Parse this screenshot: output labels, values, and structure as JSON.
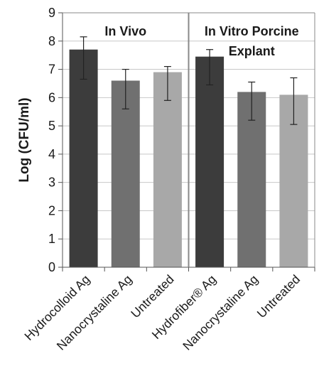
{
  "chart_data": {
    "type": "bar",
    "title": "",
    "xlabel": "",
    "ylabel": "Log (CFU/ml)",
    "ylim": [
      0,
      9
    ],
    "yticks": [
      0,
      1,
      2,
      3,
      4,
      5,
      6,
      7,
      8,
      9
    ],
    "grid": true,
    "groups": [
      {
        "label": "In Vivo",
        "categories": [
          0,
          1,
          2
        ]
      },
      {
        "label_lines": [
          "In Vitro Porcine",
          "Explant"
        ],
        "categories": [
          3,
          4,
          5
        ]
      }
    ],
    "categories": [
      "Hydrocolloid Ag",
      "Nanocrystaline Ag",
      "Untreated",
      "Hydrofiber® Ag",
      "Nanocrystaline Ag",
      "Untreated"
    ],
    "values": [
      7.7,
      6.6,
      6.9,
      7.45,
      6.2,
      6.1
    ],
    "error_low": [
      6.65,
      5.6,
      5.9,
      6.45,
      5.2,
      5.05
    ],
    "error_high": [
      8.15,
      7.0,
      7.1,
      7.7,
      6.55,
      6.7
    ],
    "colors": [
      "#3c3c3c",
      "#707070",
      "#a8a8a8",
      "#3c3c3c",
      "#707070",
      "#a8a8a8"
    ]
  }
}
